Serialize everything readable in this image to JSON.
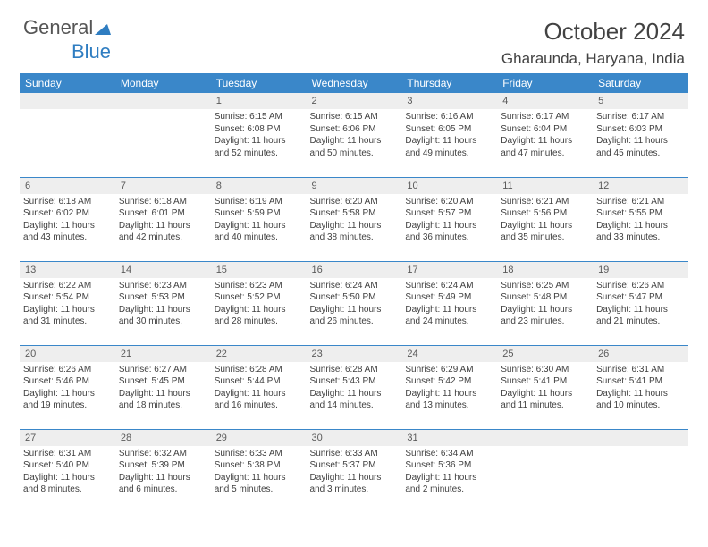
{
  "logo": {
    "text1": "General",
    "text2": "Blue"
  },
  "title": "October 2024",
  "subtitle": "Gharaunda, Haryana, India",
  "colors": {
    "header_bg": "#3a87c9",
    "header_text": "#ffffff",
    "daynum_bg": "#eeeeee",
    "body_text": "#404040",
    "row_border": "#3a87c9",
    "logo_gray": "#555555",
    "logo_blue": "#2f7dc1"
  },
  "day_headers": [
    "Sunday",
    "Monday",
    "Tuesday",
    "Wednesday",
    "Thursday",
    "Friday",
    "Saturday"
  ],
  "weeks": [
    [
      {
        "n": "",
        "sr": "",
        "ss": "",
        "dl": ""
      },
      {
        "n": "",
        "sr": "",
        "ss": "",
        "dl": ""
      },
      {
        "n": "1",
        "sr": "6:15 AM",
        "ss": "6:08 PM",
        "dl": "11 hours and 52 minutes."
      },
      {
        "n": "2",
        "sr": "6:15 AM",
        "ss": "6:06 PM",
        "dl": "11 hours and 50 minutes."
      },
      {
        "n": "3",
        "sr": "6:16 AM",
        "ss": "6:05 PM",
        "dl": "11 hours and 49 minutes."
      },
      {
        "n": "4",
        "sr": "6:17 AM",
        "ss": "6:04 PM",
        "dl": "11 hours and 47 minutes."
      },
      {
        "n": "5",
        "sr": "6:17 AM",
        "ss": "6:03 PM",
        "dl": "11 hours and 45 minutes."
      }
    ],
    [
      {
        "n": "6",
        "sr": "6:18 AM",
        "ss": "6:02 PM",
        "dl": "11 hours and 43 minutes."
      },
      {
        "n": "7",
        "sr": "6:18 AM",
        "ss": "6:01 PM",
        "dl": "11 hours and 42 minutes."
      },
      {
        "n": "8",
        "sr": "6:19 AM",
        "ss": "5:59 PM",
        "dl": "11 hours and 40 minutes."
      },
      {
        "n": "9",
        "sr": "6:20 AM",
        "ss": "5:58 PM",
        "dl": "11 hours and 38 minutes."
      },
      {
        "n": "10",
        "sr": "6:20 AM",
        "ss": "5:57 PM",
        "dl": "11 hours and 36 minutes."
      },
      {
        "n": "11",
        "sr": "6:21 AM",
        "ss": "5:56 PM",
        "dl": "11 hours and 35 minutes."
      },
      {
        "n": "12",
        "sr": "6:21 AM",
        "ss": "5:55 PM",
        "dl": "11 hours and 33 minutes."
      }
    ],
    [
      {
        "n": "13",
        "sr": "6:22 AM",
        "ss": "5:54 PM",
        "dl": "11 hours and 31 minutes."
      },
      {
        "n": "14",
        "sr": "6:23 AM",
        "ss": "5:53 PM",
        "dl": "11 hours and 30 minutes."
      },
      {
        "n": "15",
        "sr": "6:23 AM",
        "ss": "5:52 PM",
        "dl": "11 hours and 28 minutes."
      },
      {
        "n": "16",
        "sr": "6:24 AM",
        "ss": "5:50 PM",
        "dl": "11 hours and 26 minutes."
      },
      {
        "n": "17",
        "sr": "6:24 AM",
        "ss": "5:49 PM",
        "dl": "11 hours and 24 minutes."
      },
      {
        "n": "18",
        "sr": "6:25 AM",
        "ss": "5:48 PM",
        "dl": "11 hours and 23 minutes."
      },
      {
        "n": "19",
        "sr": "6:26 AM",
        "ss": "5:47 PM",
        "dl": "11 hours and 21 minutes."
      }
    ],
    [
      {
        "n": "20",
        "sr": "6:26 AM",
        "ss": "5:46 PM",
        "dl": "11 hours and 19 minutes."
      },
      {
        "n": "21",
        "sr": "6:27 AM",
        "ss": "5:45 PM",
        "dl": "11 hours and 18 minutes."
      },
      {
        "n": "22",
        "sr": "6:28 AM",
        "ss": "5:44 PM",
        "dl": "11 hours and 16 minutes."
      },
      {
        "n": "23",
        "sr": "6:28 AM",
        "ss": "5:43 PM",
        "dl": "11 hours and 14 minutes."
      },
      {
        "n": "24",
        "sr": "6:29 AM",
        "ss": "5:42 PM",
        "dl": "11 hours and 13 minutes."
      },
      {
        "n": "25",
        "sr": "6:30 AM",
        "ss": "5:41 PM",
        "dl": "11 hours and 11 minutes."
      },
      {
        "n": "26",
        "sr": "6:31 AM",
        "ss": "5:41 PM",
        "dl": "11 hours and 10 minutes."
      }
    ],
    [
      {
        "n": "27",
        "sr": "6:31 AM",
        "ss": "5:40 PM",
        "dl": "11 hours and 8 minutes."
      },
      {
        "n": "28",
        "sr": "6:32 AM",
        "ss": "5:39 PM",
        "dl": "11 hours and 6 minutes."
      },
      {
        "n": "29",
        "sr": "6:33 AM",
        "ss": "5:38 PM",
        "dl": "11 hours and 5 minutes."
      },
      {
        "n": "30",
        "sr": "6:33 AM",
        "ss": "5:37 PM",
        "dl": "11 hours and 3 minutes."
      },
      {
        "n": "31",
        "sr": "6:34 AM",
        "ss": "5:36 PM",
        "dl": "11 hours and 2 minutes."
      },
      {
        "n": "",
        "sr": "",
        "ss": "",
        "dl": ""
      },
      {
        "n": "",
        "sr": "",
        "ss": "",
        "dl": ""
      }
    ]
  ],
  "labels": {
    "sunrise": "Sunrise:",
    "sunset": "Sunset:",
    "daylight": "Daylight:"
  }
}
